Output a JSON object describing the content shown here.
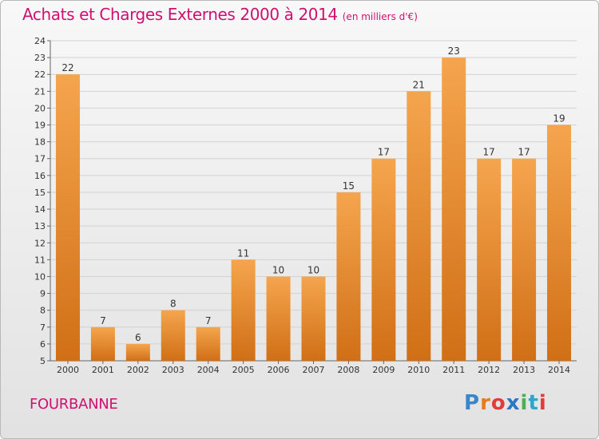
{
  "header": {
    "title": "Achats et Charges Externes 2000 à 2014",
    "unit": "(en milliers d'€)"
  },
  "footer": {
    "commune": "FOURBANNE",
    "logo_letters": [
      "P",
      "r",
      "o",
      "x",
      "i",
      "t",
      "i"
    ],
    "logo_colors": [
      "#3a86c6",
      "#e67a1d",
      "#e23b3b",
      "#2b78c2",
      "#4caf50",
      "#2aa7c9",
      "#e23b3b"
    ]
  },
  "colors": {
    "bar_light": "#f5a54e",
    "bar_dark": "#d06f16",
    "title": "#d01070"
  },
  "chart_data": {
    "type": "bar",
    "categories": [
      "2000",
      "2001",
      "2002",
      "2003",
      "2004",
      "2005",
      "2006",
      "2007",
      "2008",
      "2009",
      "2010",
      "2011",
      "2012",
      "2013",
      "2014"
    ],
    "values": [
      22,
      7,
      6,
      8,
      7,
      11,
      10,
      10,
      15,
      17,
      21,
      23,
      17,
      17,
      19
    ],
    "ylim": [
      5,
      24
    ],
    "yticks": [
      5,
      6,
      7,
      8,
      9,
      10,
      11,
      12,
      13,
      14,
      15,
      16,
      17,
      18,
      19,
      20,
      21,
      22,
      23,
      24
    ],
    "grid": true
  }
}
